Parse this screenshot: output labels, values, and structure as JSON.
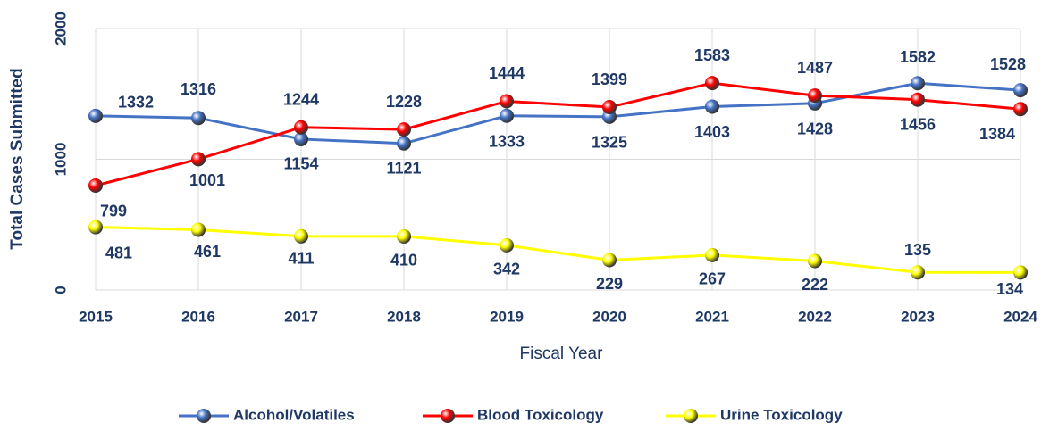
{
  "chart_data": {
    "type": "line",
    "categories": [
      "2015",
      "2016",
      "2017",
      "2018",
      "2019",
      "2020",
      "2021",
      "2022",
      "2023",
      "2024"
    ],
    "series": [
      {
        "name": "Alcohol/Volatiles",
        "color": "#4472c4",
        "values": [
          1332,
          1316,
          1154,
          1121,
          1333,
          1325,
          1403,
          1428,
          1582,
          1528
        ]
      },
      {
        "name": "Blood Toxicology",
        "color": "#ff0000",
        "values": [
          799,
          1001,
          1244,
          1228,
          1444,
          1399,
          1583,
          1487,
          1456,
          1384
        ]
      },
      {
        "name": "Urine Toxicology",
        "color": "#ffff00",
        "values": [
          481,
          461,
          411,
          410,
          342,
          229,
          267,
          222,
          135,
          134
        ]
      }
    ],
    "xlabel": "Fiscal Year",
    "ylabel": "Total Cases Submitted",
    "ylim": [
      0,
      2000
    ],
    "yticks": [
      0,
      1000,
      2000
    ],
    "grid": true,
    "legend": "bottom"
  }
}
